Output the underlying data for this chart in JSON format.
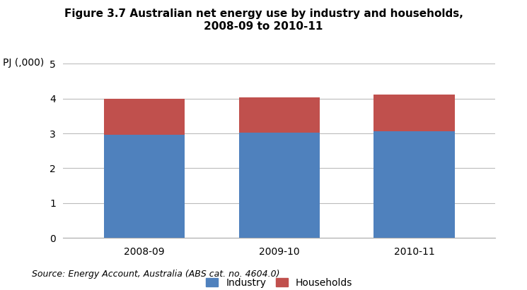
{
  "title": "Figure 3.7 Australian net energy use by industry and households,\n2008-09 to 2010-11",
  "ylabel": "PJ (,000)",
  "categories": [
    "2008-09",
    "2009-10",
    "2010-11"
  ],
  "industry_values": [
    2.97,
    3.02,
    3.07
  ],
  "households_values": [
    1.03,
    1.02,
    1.05
  ],
  "industry_color": "#4f81bd",
  "households_color": "#C0504D",
  "ylim": [
    0,
    5
  ],
  "yticks": [
    0,
    1,
    2,
    3,
    4,
    5
  ],
  "bar_width": 0.6,
  "legend_labels": [
    "Industry",
    "Households"
  ],
  "source_text": "Source: Energy Account, Australia (ABS cat. no. 4604.0)",
  "bg_color": "#FFFFFF",
  "grid_color": "#BBBBBB",
  "title_fontsize": 11,
  "axis_fontsize": 10,
  "tick_fontsize": 10,
  "source_fontsize": 9
}
